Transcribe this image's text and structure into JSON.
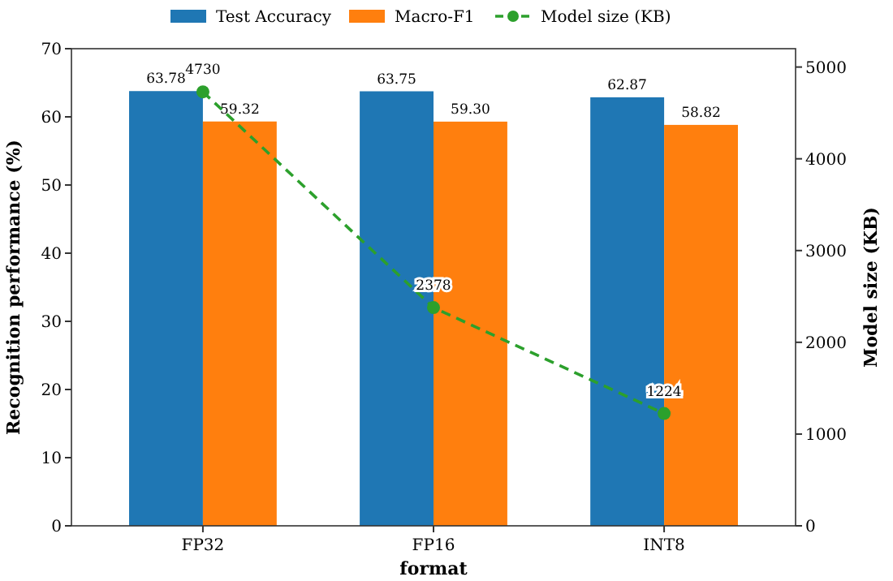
{
  "chart_data": {
    "type": "bar",
    "xlabel": "format",
    "ylabel": "Recognition performance (%)",
    "y2label": "Model size (KB)",
    "categories": [
      "FP32",
      "FP16",
      "INT8"
    ],
    "series": [
      {
        "name": "Test Accuracy",
        "color": "#1f77b4",
        "values": [
          63.78,
          63.75,
          62.87
        ],
        "value_labels": [
          "63.78",
          "63.75",
          "62.87"
        ]
      },
      {
        "name": "Macro-F1",
        "color": "#ff7f0e",
        "values": [
          59.32,
          59.3,
          58.82
        ],
        "value_labels": [
          "59.32",
          "59.30",
          "58.82"
        ]
      },
      {
        "name": "Model size (KB)",
        "type": "line",
        "axis": "y2",
        "color": "#2ca02c",
        "values": [
          4730,
          2378,
          1224
        ],
        "value_labels": [
          "4730",
          "2378",
          "1224"
        ],
        "marker": "circle",
        "line_style": "dashed"
      }
    ],
    "ylim": [
      0,
      70
    ],
    "yticks": [
      0,
      10,
      20,
      30,
      40,
      50,
      60,
      70
    ],
    "y2lim": [
      0,
      5200
    ],
    "y2ticks": [
      0,
      1000,
      2000,
      3000,
      4000,
      5000
    ],
    "legend": "top"
  }
}
